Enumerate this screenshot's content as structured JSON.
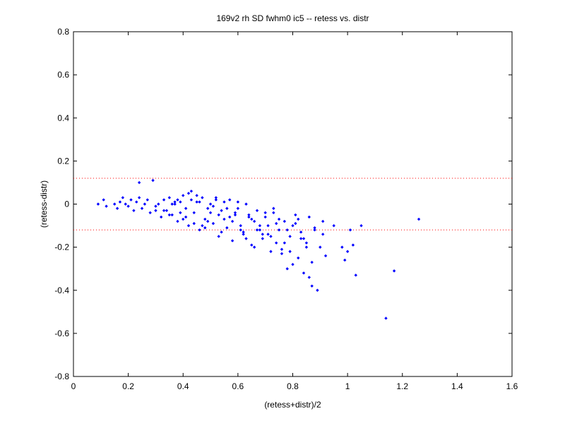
{
  "chart_data": {
    "type": "scatter",
    "title": "169v2 rh SD fwhm0 ic5 -- retess vs. distr",
    "xlabel": "(retess+distr)/2",
    "ylabel": "(retess-distr)",
    "xlim": [
      0,
      1.6
    ],
    "ylim": [
      -0.8,
      0.8
    ],
    "xticks": [
      0,
      0.2,
      0.4,
      0.6,
      0.8,
      1,
      1.2,
      1.4,
      1.6
    ],
    "yticks": [
      -0.8,
      -0.6,
      -0.4,
      -0.2,
      0,
      0.2,
      0.4,
      0.6,
      0.8
    ],
    "xtick_labels": [
      "0",
      "0.2",
      "0.4",
      "0.6",
      "0.8",
      "1",
      "1.2",
      "1.4",
      "1.6"
    ],
    "ytick_labels": [
      "-0.8",
      "-0.6",
      "-0.4",
      "-0.2",
      "0",
      "0.2",
      "0.4",
      "0.6",
      "0.8"
    ],
    "grid": false,
    "marker_color": "#0000ff",
    "reference_line_color": "#ff0000",
    "reference_lines": [
      0.12,
      -0.12
    ],
    "series": [
      {
        "x": [
          0.09,
          0.11,
          0.12,
          0.15,
          0.16,
          0.17,
          0.18,
          0.19,
          0.2,
          0.21,
          0.22,
          0.23,
          0.24,
          0.25,
          0.26,
          0.27,
          0.28,
          0.29,
          0.3,
          0.31,
          0.32,
          0.33,
          0.34,
          0.35,
          0.36,
          0.37,
          0.38,
          0.39,
          0.4,
          0.41,
          0.42,
          0.43,
          0.44,
          0.45,
          0.46,
          0.47,
          0.48,
          0.49,
          0.5,
          0.51,
          0.52,
          0.53,
          0.54,
          0.55,
          0.56,
          0.57,
          0.58,
          0.59,
          0.6,
          0.61,
          0.62,
          0.63,
          0.64,
          0.65,
          0.66,
          0.67,
          0.68,
          0.69,
          0.7,
          0.71,
          0.72,
          0.73,
          0.74,
          0.75,
          0.76,
          0.77,
          0.78,
          0.79,
          0.8,
          0.81,
          0.82,
          0.83,
          0.84,
          0.85,
          0.86,
          0.87,
          0.88,
          0.89,
          0.9,
          0.91,
          0.92,
          0.95,
          0.98,
          0.99,
          1.0,
          1.01,
          1.02,
          1.03,
          1.05,
          1.14,
          1.17,
          1.26,
          0.24,
          0.3,
          0.35,
          0.38,
          0.4,
          0.42,
          0.44,
          0.46,
          0.48,
          0.5,
          0.52,
          0.54,
          0.56,
          0.58,
          0.6,
          0.62,
          0.64,
          0.66,
          0.68,
          0.7,
          0.72,
          0.74,
          0.76,
          0.78,
          0.8,
          0.82,
          0.84,
          0.86,
          0.88,
          0.33,
          0.37,
          0.41,
          0.45,
          0.49,
          0.53,
          0.57,
          0.61,
          0.65,
          0.69,
          0.73,
          0.77,
          0.81,
          0.85,
          0.36,
          0.39,
          0.43,
          0.47,
          0.51,
          0.55,
          0.59,
          0.63,
          0.67,
          0.71,
          0.75,
          0.79,
          0.83,
          0.87,
          0.91
        ],
        "y": [
          0.0,
          0.02,
          -0.01,
          0.0,
          -0.02,
          0.01,
          0.03,
          0.0,
          -0.01,
          0.02,
          -0.03,
          0.01,
          0.1,
          -0.02,
          0.0,
          0.02,
          -0.04,
          0.11,
          -0.01,
          0.0,
          -0.06,
          0.02,
          -0.03,
          0.03,
          -0.05,
          0.0,
          -0.08,
          0.01,
          0.04,
          -0.02,
          -0.1,
          0.02,
          -0.04,
          0.01,
          -0.12,
          0.03,
          -0.07,
          -0.02,
          0.0,
          -0.09,
          0.02,
          -0.15,
          -0.03,
          0.01,
          -0.11,
          -0.06,
          -0.17,
          -0.04,
          -0.02,
          -0.1,
          -0.13,
          0.0,
          -0.05,
          -0.19,
          -0.08,
          -0.03,
          -0.12,
          -0.16,
          -0.06,
          -0.1,
          -0.22,
          -0.04,
          -0.18,
          -0.12,
          -0.21,
          -0.08,
          -0.3,
          -0.15,
          -0.1,
          -0.05,
          -0.25,
          -0.13,
          -0.32,
          -0.18,
          -0.06,
          -0.38,
          -0.11,
          -0.4,
          -0.2,
          -0.08,
          -0.24,
          -0.1,
          -0.2,
          -0.26,
          -0.22,
          -0.12,
          -0.19,
          -0.33,
          -0.1,
          -0.53,
          -0.31,
          -0.07,
          0.03,
          -0.03,
          -0.05,
          0.02,
          -0.07,
          0.05,
          -0.09,
          0.01,
          -0.11,
          -0.04,
          0.03,
          -0.13,
          -0.02,
          -0.08,
          0.01,
          -0.14,
          -0.06,
          -0.2,
          -0.1,
          -0.04,
          -0.15,
          -0.09,
          -0.23,
          -0.12,
          -0.28,
          -0.07,
          -0.16,
          -0.34,
          -0.12,
          -0.03,
          0.01,
          -0.06,
          0.04,
          -0.08,
          -0.05,
          0.02,
          -0.12,
          -0.07,
          -0.14,
          -0.02,
          -0.18,
          -0.09,
          -0.2,
          0.0,
          -0.04,
          0.06,
          -0.1,
          -0.01,
          -0.07,
          -0.05,
          -0.16,
          -0.12,
          -0.14,
          -0.07,
          -0.22,
          -0.16,
          -0.27,
          -0.14
        ]
      }
    ]
  }
}
